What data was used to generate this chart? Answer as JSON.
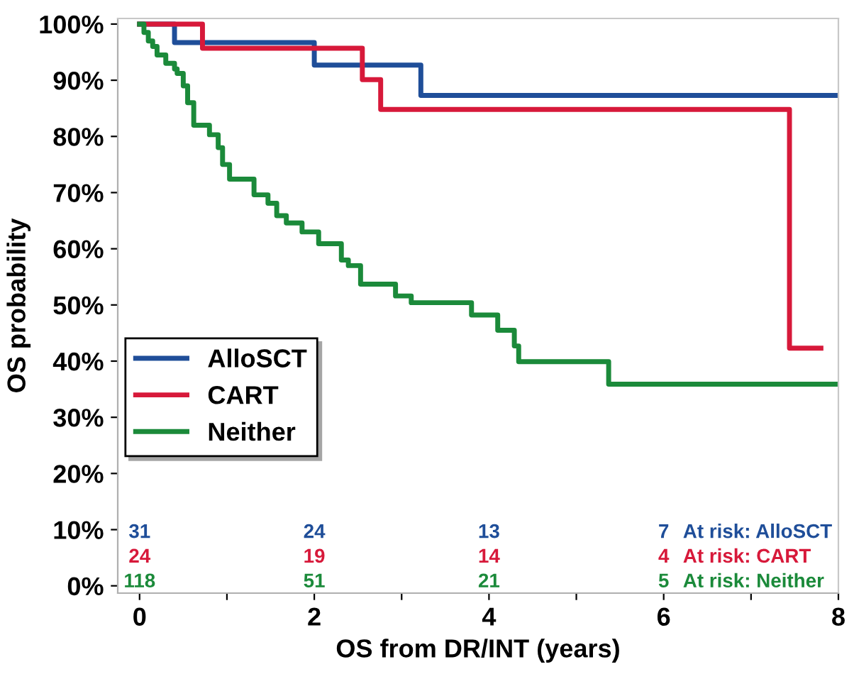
{
  "chart_data": {
    "type": "step",
    "xlabel": "OS from DR/INT (years)",
    "ylabel": "OS probability",
    "xlim": [
      -0.25,
      8.0
    ],
    "ylim": [
      -1.3,
      101
    ],
    "xticks": [
      0,
      {
        "value": 1,
        "label": null
      },
      2,
      {
        "value": 3,
        "label": null
      },
      4,
      {
        "value": 5,
        "label": null
      },
      6,
      {
        "value": 7,
        "label": null
      },
      8
    ],
    "yticks": [
      {
        "value": 0,
        "label": "0%"
      },
      {
        "value": 10,
        "label": "10%"
      },
      {
        "value": 20,
        "label": "20%"
      },
      {
        "value": 30,
        "label": "30%"
      },
      {
        "value": 40,
        "label": "40%"
      },
      {
        "value": 50,
        "label": "50%"
      },
      {
        "value": 60,
        "label": "60%"
      },
      {
        "value": 70,
        "label": "70%"
      },
      {
        "value": 80,
        "label": "80%"
      },
      {
        "value": 90,
        "label": "90%"
      },
      {
        "value": 100,
        "label": "100%"
      }
    ],
    "grid": false,
    "legend": "bottom left",
    "series": [
      {
        "name": "AlloSCT",
        "color": "#1f4e99",
        "x": [
          0,
          0.4,
          2.0,
          3.22,
          8.0
        ],
        "values": [
          100,
          96.7,
          92.7,
          87.3,
          87.3
        ]
      },
      {
        "name": "CART",
        "color": "#d7193a",
        "x": [
          0,
          0.72,
          2.55,
          2.76,
          7.44,
          7.8
        ],
        "values": [
          100,
          95.7,
          90.1,
          84.8,
          42.3,
          42.3
        ]
      },
      {
        "name": "Neither",
        "color": "#1b8a3a",
        "x": [
          0,
          0.05,
          0.1,
          0.15,
          0.2,
          0.3,
          0.4,
          0.43,
          0.5,
          0.55,
          0.62,
          0.8,
          0.9,
          0.95,
          1.03,
          1.31,
          1.47,
          1.57,
          1.68,
          1.86,
          2.05,
          2.31,
          2.39,
          2.53,
          2.93,
          3.11,
          3.8,
          4.1,
          4.29,
          4.34,
          5.37,
          8.0
        ],
        "values": [
          100,
          98.5,
          97,
          96,
          94.5,
          93,
          92,
          91.2,
          89,
          86,
          82,
          80.3,
          78,
          75,
          72.4,
          69.6,
          68.1,
          65.9,
          64.6,
          63.0,
          60.9,
          58,
          57,
          53.7,
          51.6,
          50.4,
          48.2,
          45.5,
          42.7,
          39.9,
          35.9,
          35.9
        ]
      }
    ],
    "annotations": [
      "31",
      "24",
      "13",
      "7",
      "At risk: AlloSCT",
      "24",
      "19",
      "14",
      "4",
      "At risk: CART",
      "118",
      "51",
      "21",
      "5",
      "At risk: Neither"
    ]
  }
}
